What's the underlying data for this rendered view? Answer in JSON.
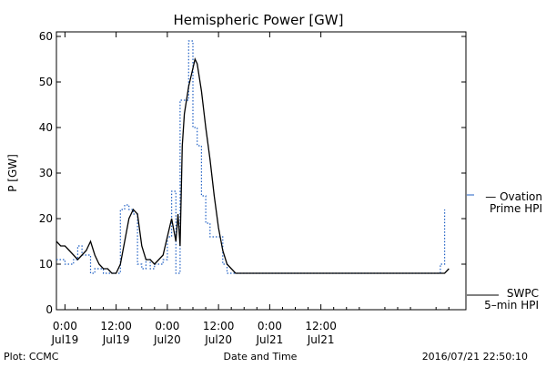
{
  "chart_data": {
    "type": "line",
    "title": "Hemispheric Power [GW]",
    "ylabel": "P [GW]",
    "xlabel": "Date and Time",
    "ylim": [
      0,
      61
    ],
    "xlim_hours": [
      -2,
      94
    ],
    "x_unit": "hours since 2016-07-19 00:00 UTC",
    "yticks": [
      0,
      10,
      20,
      30,
      40,
      50,
      60
    ],
    "xticks": [
      {
        "hour": 0,
        "time": "0:00",
        "date": "Jul19"
      },
      {
        "hour": 12,
        "time": "12:00",
        "date": "Jul19"
      },
      {
        "hour": 24,
        "time": "0:00",
        "date": "Jul20"
      },
      {
        "hour": 36,
        "time": "12:00",
        "date": "Jul20"
      },
      {
        "hour": 48,
        "time": "0:00",
        "date": "Jul21"
      },
      {
        "hour": 60,
        "time": "12:00",
        "date": "Jul21"
      }
    ],
    "grid": false,
    "series": [
      {
        "name": "Ovation Prime HPI",
        "legend_lines": [
          "— Ovation",
          "Prime HPI"
        ],
        "color": "#1f5fc4",
        "style": "dotted-step",
        "points": [
          [
            -2,
            11
          ],
          [
            0,
            10
          ],
          [
            2,
            11
          ],
          [
            3,
            14
          ],
          [
            4,
            12
          ],
          [
            5,
            12
          ],
          [
            6,
            8
          ],
          [
            7,
            9
          ],
          [
            8,
            9
          ],
          [
            9,
            8
          ],
          [
            12,
            8
          ],
          [
            13,
            22
          ],
          [
            14,
            23
          ],
          [
            15,
            22
          ],
          [
            16,
            21
          ],
          [
            17,
            10
          ],
          [
            18,
            9
          ],
          [
            19,
            11
          ],
          [
            20,
            9
          ],
          [
            21,
            10
          ],
          [
            23,
            11
          ],
          [
            24,
            16
          ],
          [
            25,
            26
          ],
          [
            26,
            8
          ],
          [
            27,
            46
          ],
          [
            28,
            46
          ],
          [
            29,
            59
          ],
          [
            30,
            40
          ],
          [
            31,
            36
          ],
          [
            32,
            25
          ],
          [
            33,
            19
          ],
          [
            34,
            16
          ],
          [
            35,
            16
          ],
          [
            36,
            16
          ],
          [
            37,
            10
          ],
          [
            38,
            8
          ],
          [
            40,
            8
          ],
          [
            87,
            8
          ],
          [
            88,
            10
          ],
          [
            89,
            22
          ]
        ]
      },
      {
        "name": "SWPC 5-min HPI",
        "legend_lines": [
          "SWPC",
          "5–min HPI"
        ],
        "color": "#000000",
        "style": "solid",
        "points": [
          [
            -2,
            15
          ],
          [
            -1,
            14
          ],
          [
            0,
            14
          ],
          [
            1,
            13
          ],
          [
            2,
            12
          ],
          [
            3,
            11
          ],
          [
            4,
            12
          ],
          [
            5,
            13
          ],
          [
            6,
            15
          ],
          [
            7,
            12
          ],
          [
            8,
            10
          ],
          [
            9,
            9
          ],
          [
            10,
            9
          ],
          [
            11,
            8
          ],
          [
            12,
            8
          ],
          [
            13,
            10
          ],
          [
            14,
            15
          ],
          [
            15,
            20
          ],
          [
            16,
            22
          ],
          [
            17,
            21
          ],
          [
            18,
            14
          ],
          [
            19,
            11
          ],
          [
            20,
            11
          ],
          [
            21,
            10
          ],
          [
            22,
            11
          ],
          [
            23,
            12
          ],
          [
            24,
            16
          ],
          [
            25,
            20
          ],
          [
            26,
            15
          ],
          [
            26.5,
            21
          ],
          [
            27,
            14
          ],
          [
            27.5,
            36
          ],
          [
            28,
            43
          ],
          [
            29,
            49
          ],
          [
            30,
            53
          ],
          [
            30.5,
            55
          ],
          [
            31,
            54
          ],
          [
            32,
            48
          ],
          [
            33,
            40
          ],
          [
            34,
            33
          ],
          [
            35,
            25
          ],
          [
            36,
            18
          ],
          [
            37,
            13
          ],
          [
            38,
            10
          ],
          [
            39,
            9
          ],
          [
            40,
            8
          ],
          [
            89,
            8
          ],
          [
            90,
            9
          ]
        ]
      }
    ]
  },
  "footer": {
    "left": "Plot: CCMC",
    "center": "Date and Time",
    "right": "2016/07/21 22:50:10"
  }
}
